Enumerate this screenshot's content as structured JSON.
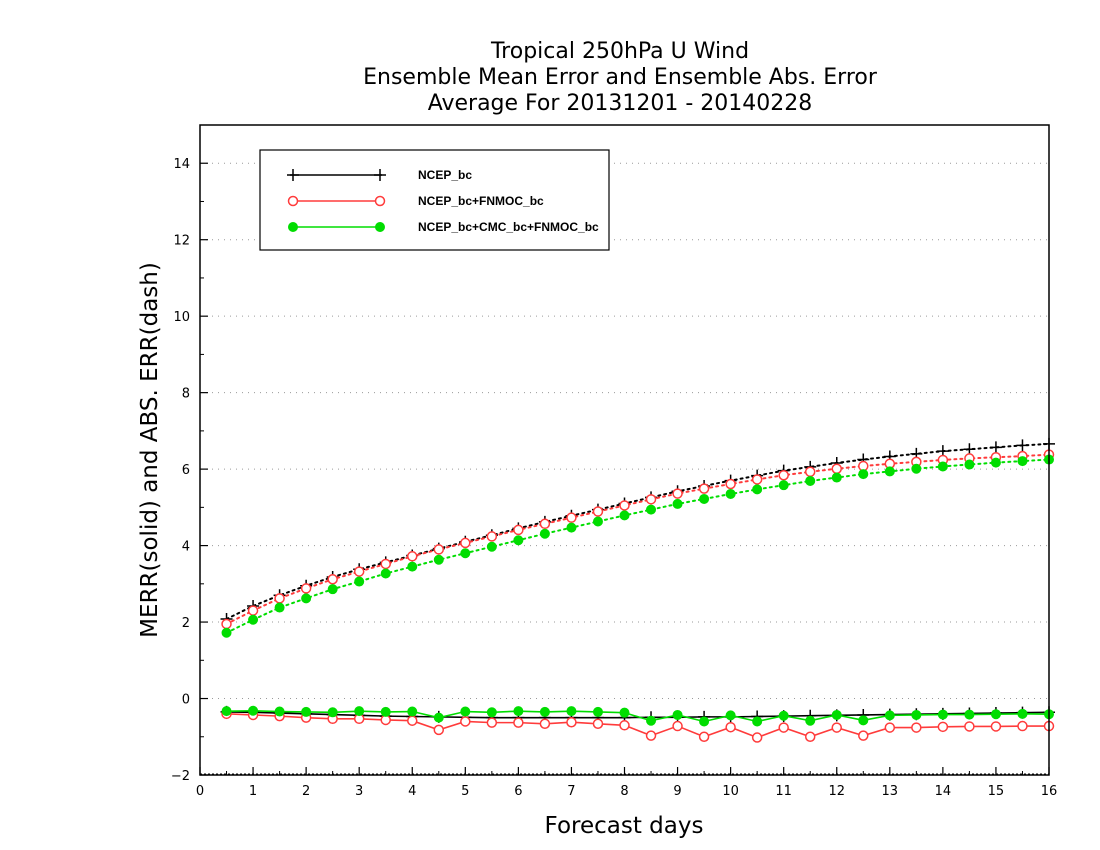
{
  "chart_data": {
    "type": "line",
    "title": [
      "Tropical 250hPa U Wind",
      "Ensemble Mean Error and Ensemble Abs. Error",
      "Average For 20131201 - 20140228"
    ],
    "xlabel": "Forecast days",
    "ylabel": "MERR(solid) and ABS. ERR(dash)",
    "xlim": [
      0,
      16
    ],
    "ylim": [
      -2,
      15
    ],
    "xticks": [
      0,
      1,
      2,
      3,
      4,
      5,
      6,
      7,
      8,
      9,
      10,
      11,
      12,
      13,
      14,
      15,
      16
    ],
    "yticks": [
      -2,
      0,
      2,
      4,
      6,
      8,
      10,
      12,
      14
    ],
    "ytick_labels": [
      "−2",
      "0",
      "2",
      "4",
      "6",
      "8",
      "10",
      "12",
      "14"
    ],
    "grid": "horizontal dotted",
    "legend_position": "top-left",
    "x": [
      0.5,
      1,
      1.5,
      2,
      2.5,
      3,
      3.5,
      4,
      4.5,
      5,
      5.5,
      6,
      6.5,
      7,
      7.5,
      8,
      8.5,
      9,
      9.5,
      10,
      10.5,
      11,
      11.5,
      12,
      12.5,
      13,
      13.5,
      14,
      14.5,
      15,
      15.5,
      16
    ],
    "series": [
      {
        "name": "NCEP_bc",
        "color": "#000000",
        "marker": "plus",
        "mean_error": [
          -0.35,
          -0.36,
          -0.38,
          -0.4,
          -0.42,
          -0.44,
          -0.46,
          -0.47,
          -0.48,
          -0.49,
          -0.5,
          -0.5,
          -0.5,
          -0.5,
          -0.5,
          -0.5,
          -0.49,
          -0.49,
          -0.48,
          -0.48,
          -0.47,
          -0.46,
          -0.45,
          -0.44,
          -0.43,
          -0.42,
          -0.41,
          -0.4,
          -0.39,
          -0.38,
          -0.37,
          -0.36
        ],
        "abs_error": [
          2.08,
          2.42,
          2.7,
          2.95,
          3.18,
          3.38,
          3.56,
          3.74,
          3.92,
          4.1,
          4.27,
          4.45,
          4.62,
          4.78,
          4.94,
          5.1,
          5.26,
          5.42,
          5.56,
          5.7,
          5.83,
          5.96,
          6.06,
          6.16,
          6.25,
          6.33,
          6.4,
          6.47,
          6.52,
          6.57,
          6.62,
          6.66
        ]
      },
      {
        "name": "NCEP_bc+FNMOC_bc",
        "color": "#ff3b3b",
        "marker": "open-circle",
        "mean_error": [
          -0.4,
          -0.43,
          -0.46,
          -0.5,
          -0.53,
          -0.53,
          -0.56,
          -0.58,
          -0.82,
          -0.6,
          -0.63,
          -0.63,
          -0.66,
          -0.62,
          -0.66,
          -0.7,
          -0.97,
          -0.72,
          -1.0,
          -0.75,
          -1.02,
          -0.76,
          -1.0,
          -0.76,
          -0.97,
          -0.76,
          -0.76,
          -0.74,
          -0.73,
          -0.73,
          -0.72,
          -0.72
        ],
        "abs_error": [
          1.95,
          2.3,
          2.62,
          2.88,
          3.12,
          3.32,
          3.52,
          3.72,
          3.9,
          4.07,
          4.24,
          4.41,
          4.57,
          4.73,
          4.89,
          5.05,
          5.21,
          5.36,
          5.49,
          5.61,
          5.73,
          5.84,
          5.93,
          6.01,
          6.08,
          6.14,
          6.19,
          6.24,
          6.28,
          6.31,
          6.34,
          6.38
        ]
      },
      {
        "name": "NCEP_bc+CMC_bc+FNMOC_bc",
        "color": "#00dd00",
        "marker": "filled-circle",
        "mean_error": [
          -0.33,
          -0.32,
          -0.34,
          -0.35,
          -0.36,
          -0.33,
          -0.35,
          -0.34,
          -0.5,
          -0.34,
          -0.36,
          -0.33,
          -0.35,
          -0.33,
          -0.35,
          -0.37,
          -0.58,
          -0.43,
          -0.6,
          -0.44,
          -0.6,
          -0.45,
          -0.58,
          -0.43,
          -0.57,
          -0.44,
          -0.43,
          -0.42,
          -0.42,
          -0.41,
          -0.4,
          -0.41
        ],
        "abs_error": [
          1.72,
          2.06,
          2.38,
          2.62,
          2.86,
          3.06,
          3.27,
          3.45,
          3.63,
          3.8,
          3.97,
          4.14,
          4.31,
          4.47,
          4.63,
          4.79,
          4.94,
          5.09,
          5.22,
          5.35,
          5.47,
          5.58,
          5.69,
          5.78,
          5.87,
          5.94,
          6.01,
          6.07,
          6.12,
          6.17,
          6.21,
          6.25
        ]
      }
    ]
  }
}
